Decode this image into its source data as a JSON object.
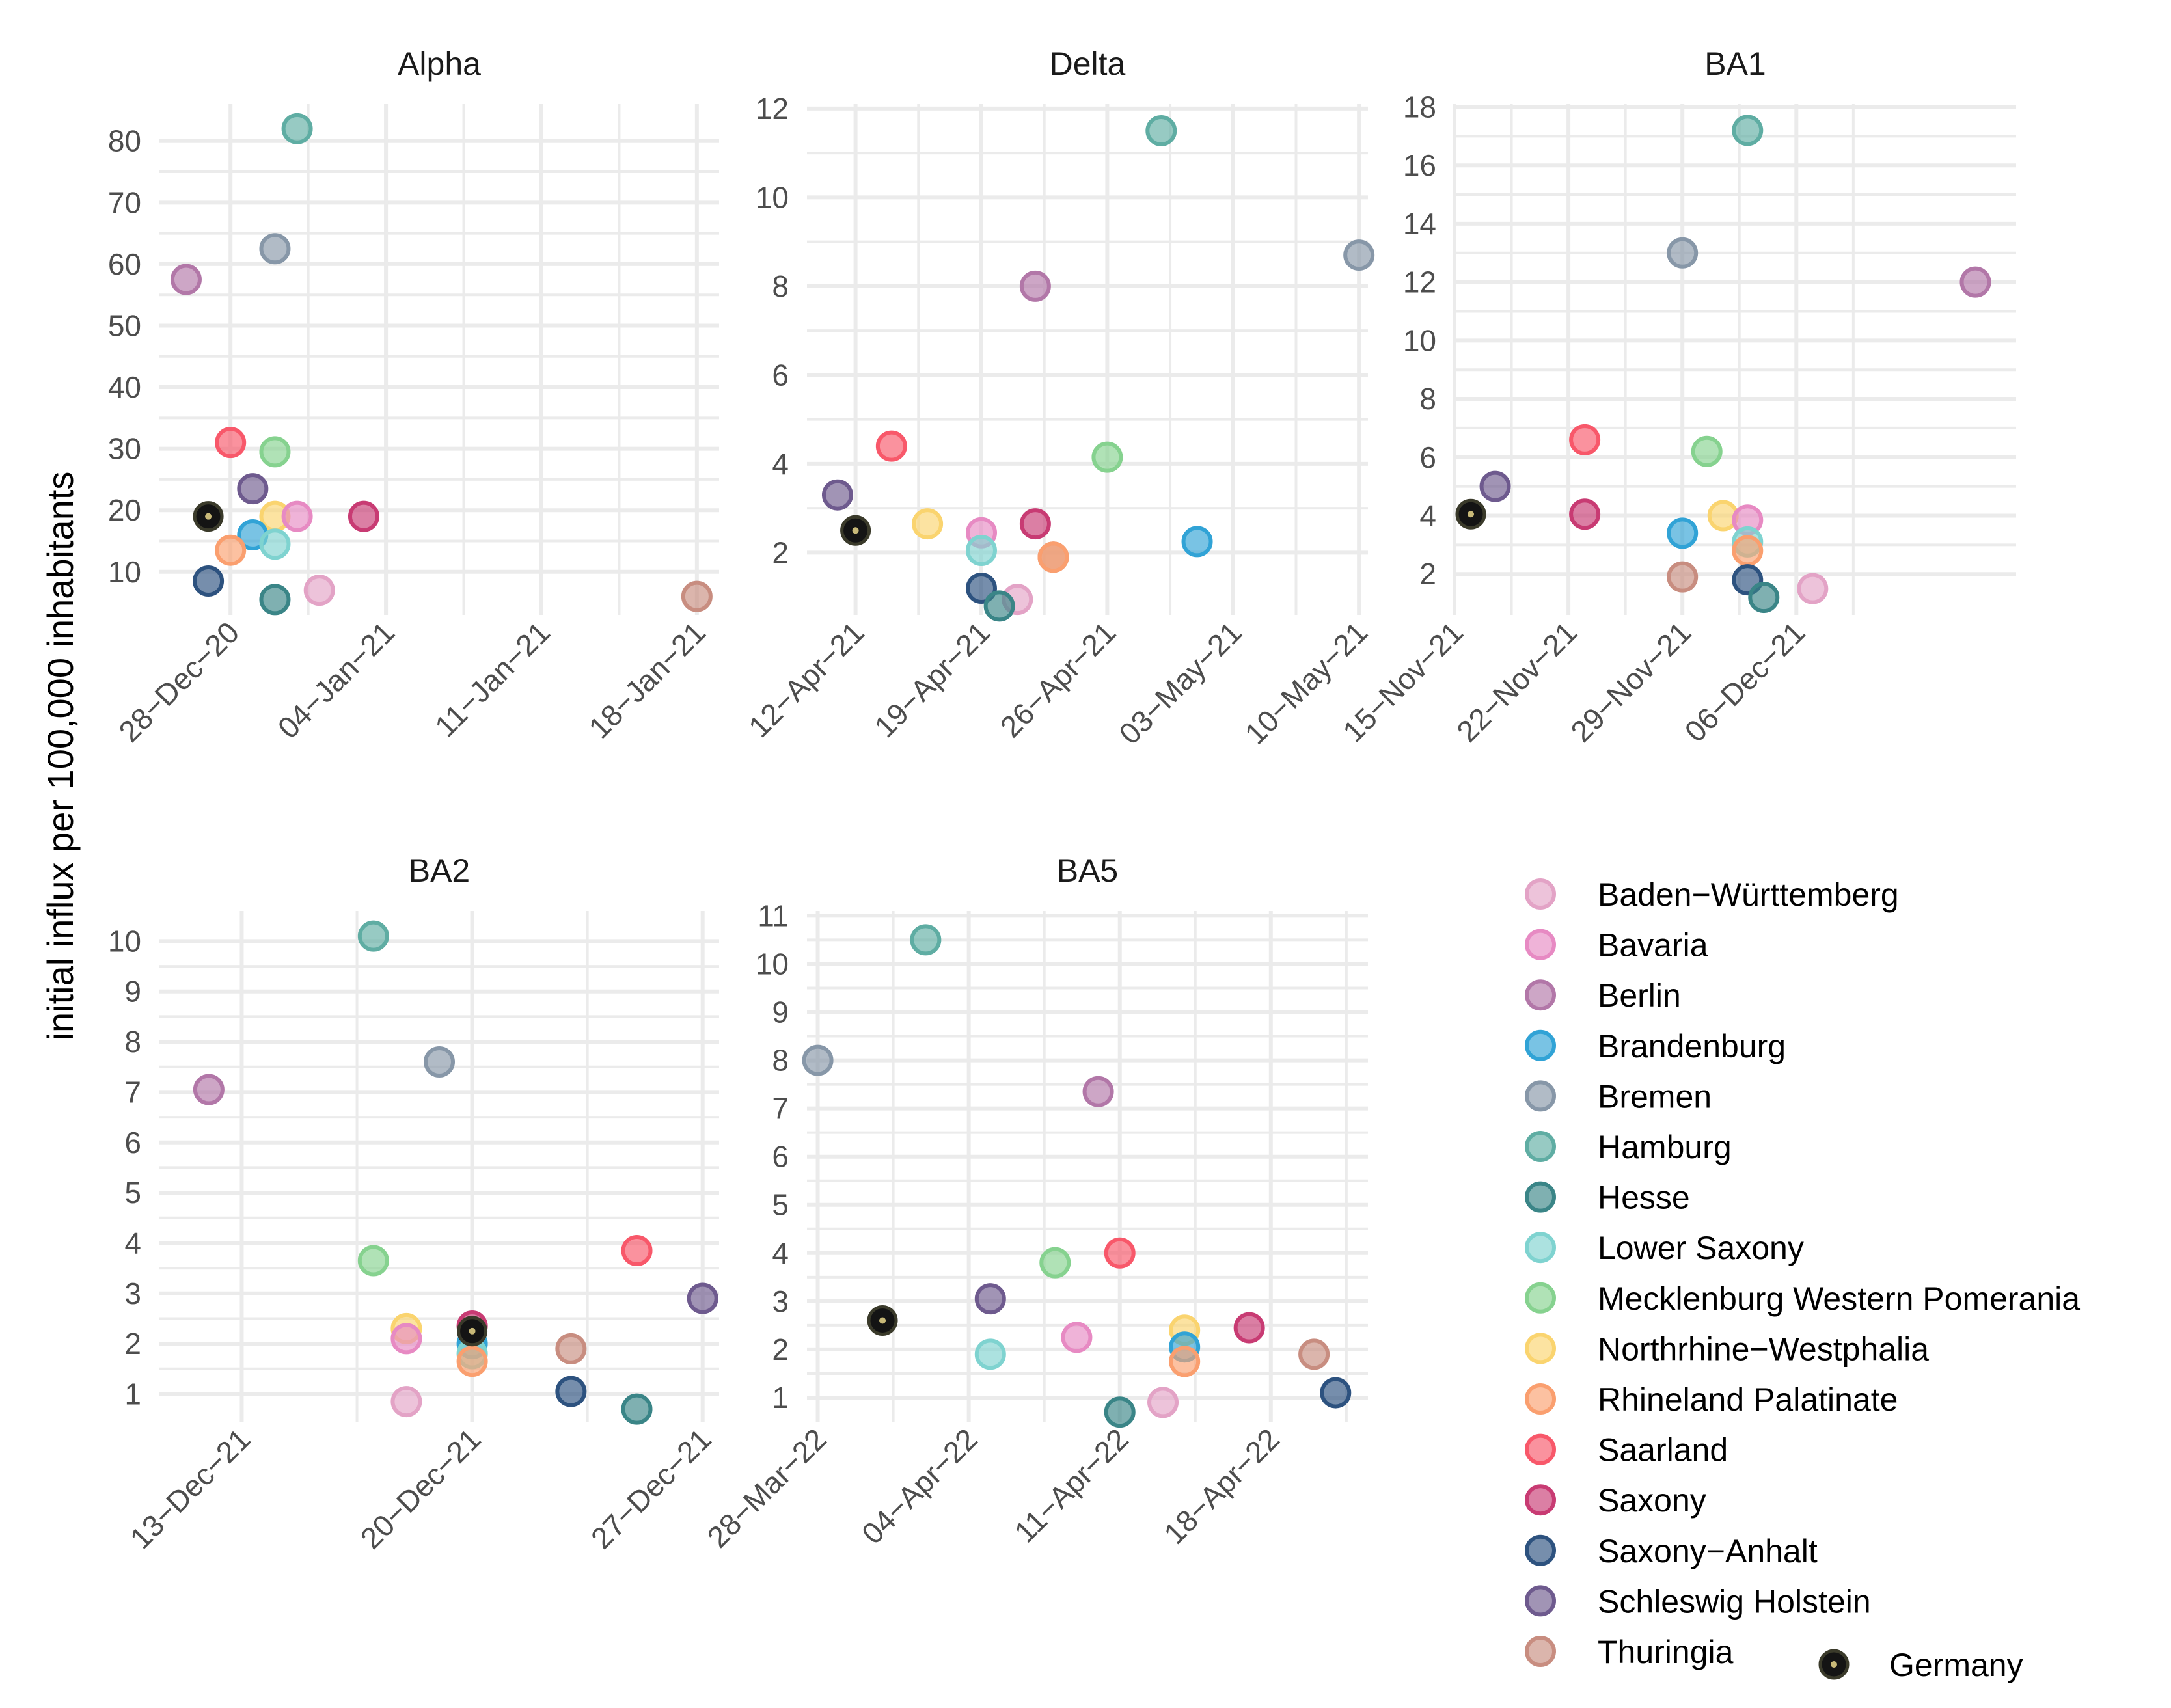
{
  "chart_data": {
    "type": "scatter",
    "ylabel": "initial influx per 100,000 inhabitants",
    "colors": {
      "Baden−Württemberg": "#e3a3c6",
      "Bavaria": "#e78ac3",
      "Berlin": "#b277a8",
      "Brandenburg": "#31a3d6",
      "Bremen": "#8797a8",
      "Hamburg": "#5fada3",
      "Hesse": "#3a8587",
      "Lower Saxony": "#7fd3d0",
      "Mecklenburg Western Pomerania": "#86d28f",
      "Northrhine−Westphalia": "#fad46f",
      "Rhineland Palatinate": "#fa9f6f",
      "Saarland": "#f8586a",
      "Saxony": "#c83b73",
      "Saxony−Anhalt": "#2d527f",
      "Schleswig Holstein": "#6e5a8e",
      "Thuringia": "#c88d80",
      "Germany": "#141414"
    },
    "legend": {
      "entries": [
        "Baden−Württemberg",
        "Bavaria",
        "Berlin",
        "Brandenburg",
        "Bremen",
        "Hamburg",
        "Hesse",
        "Lower Saxony",
        "Mecklenburg Western Pomerania",
        "Northrhine−Westphalia",
        "Rhineland Palatinate",
        "Saarland",
        "Saxony",
        "Saxony−Anhalt",
        "Schleswig Holstein",
        "Thuringia"
      ],
      "germany_label": "Germany",
      "placement": "bottom-right"
    },
    "panels": [
      {
        "title": "Alpha",
        "x_unit": "days since 28−Dec−20",
        "xlim": [
          -3.2,
          22
        ],
        "ylim": [
          3,
          86
        ],
        "x_ticks": [
          0,
          7,
          14,
          21
        ],
        "x_tick_labels": [
          "28−Dec−20",
          "04−Jan−21",
          "11−Jan−21",
          "18−Jan−21"
        ],
        "y_ticks": [
          10,
          20,
          30,
          40,
          50,
          60,
          70,
          80
        ],
        "y_tick_labels": [
          "10",
          "20",
          "30",
          "40",
          "50",
          "60",
          "70",
          "80"
        ],
        "points": [
          {
            "state": "Berlin",
            "x": -2,
            "y": 57.5
          },
          {
            "state": "Hamburg",
            "x": 3,
            "y": 82
          },
          {
            "state": "Bremen",
            "x": 2,
            "y": 62.5
          },
          {
            "state": "Saarland",
            "x": 0,
            "y": 31
          },
          {
            "state": "Mecklenburg Western Pomerania",
            "x": 2,
            "y": 29.5
          },
          {
            "state": "Schleswig Holstein",
            "x": 1,
            "y": 23.5
          },
          {
            "state": "Northrhine−Westphalia",
            "x": 2,
            "y": 19
          },
          {
            "state": "Bavaria",
            "x": 3,
            "y": 19
          },
          {
            "state": "Saxony",
            "x": 6,
            "y": 19
          },
          {
            "state": "Brandenburg",
            "x": 1,
            "y": 16
          },
          {
            "state": "Lower Saxony",
            "x": 2,
            "y": 14.5
          },
          {
            "state": "Rhineland Palatinate",
            "x": 0,
            "y": 13.5
          },
          {
            "state": "Saxony−Anhalt",
            "x": -1,
            "y": 8.5
          },
          {
            "state": "Baden−Württemberg",
            "x": 4,
            "y": 7
          },
          {
            "state": "Hesse",
            "x": 2,
            "y": 5.5
          },
          {
            "state": "Thuringia",
            "x": 21,
            "y": 6
          },
          {
            "state": "Germany",
            "x": -1,
            "y": 19
          }
        ]
      },
      {
        "title": "Delta",
        "x_unit": "days since 12−Apr−21",
        "xlim": [
          -2.7,
          28.5
        ],
        "ylim": [
          0.6,
          12.1
        ],
        "x_ticks": [
          0,
          7,
          14,
          21,
          28
        ],
        "x_tick_labels": [
          "12−Apr−21",
          "19−Apr−21",
          "26−Apr−21",
          "03−May−21",
          "10−May−21"
        ],
        "y_ticks": [
          2,
          4,
          6,
          8,
          10,
          12
        ],
        "y_tick_labels": [
          "2",
          "4",
          "6",
          "8",
          "10",
          "12"
        ],
        "points": [
          {
            "state": "Hamburg",
            "x": 17,
            "y": 11.5
          },
          {
            "state": "Bremen",
            "x": 28,
            "y": 8.7
          },
          {
            "state": "Berlin",
            "x": 10,
            "y": 8
          },
          {
            "state": "Saarland",
            "x": 2,
            "y": 4.4
          },
          {
            "state": "Mecklenburg Western Pomerania",
            "x": 14,
            "y": 4.15
          },
          {
            "state": "Schleswig Holstein",
            "x": -1,
            "y": 3.3
          },
          {
            "state": "Northrhine−Westphalia",
            "x": 4,
            "y": 2.65
          },
          {
            "state": "Saxony",
            "x": 10,
            "y": 2.65
          },
          {
            "state": "Bavaria",
            "x": 7,
            "y": 2.45
          },
          {
            "state": "Brandenburg",
            "x": 19,
            "y": 2.25
          },
          {
            "state": "Lower Saxony",
            "x": 7,
            "y": 2.05
          },
          {
            "state": "Thuringia",
            "x": 11,
            "y": 1.9
          },
          {
            "state": "Rhineland Palatinate",
            "x": 11,
            "y": 1.9
          },
          {
            "state": "Saxony−Anhalt",
            "x": 7,
            "y": 1.2
          },
          {
            "state": "Baden−Württemberg",
            "x": 9,
            "y": 0.95
          },
          {
            "state": "Hesse",
            "x": 8,
            "y": 0.8
          },
          {
            "state": "Germany",
            "x": 0,
            "y": 2.5
          }
        ]
      },
      {
        "title": "BA1",
        "x_unit": "days since 15−Nov−21",
        "xlim": [
          0,
          34.5
        ],
        "ylim": [
          0.6,
          18.1
        ],
        "x_ticks": [
          0,
          7,
          14,
          21
        ],
        "x_tick_labels": [
          "15−Nov−21",
          "22−Nov−21",
          "29−Nov−21",
          "06−Dec−21"
        ],
        "y_ticks": [
          2,
          4,
          6,
          8,
          10,
          12,
          14,
          16,
          18
        ],
        "y_tick_labels": [
          "2",
          "4",
          "6",
          "8",
          "10",
          "12",
          "14",
          "16",
          "18"
        ],
        "points": [
          {
            "state": "Hamburg",
            "x": 18,
            "y": 17.2
          },
          {
            "state": "Bremen",
            "x": 14,
            "y": 13
          },
          {
            "state": "Berlin",
            "x": 32,
            "y": 12
          },
          {
            "state": "Saarland",
            "x": 8,
            "y": 6.6
          },
          {
            "state": "Mecklenburg Western Pomerania",
            "x": 15.5,
            "y": 6.2
          },
          {
            "state": "Schleswig Holstein",
            "x": 2.5,
            "y": 5
          },
          {
            "state": "Saxony",
            "x": 8,
            "y": 4.05
          },
          {
            "state": "Northrhine−Westphalia",
            "x": 16.5,
            "y": 4
          },
          {
            "state": "Bavaria",
            "x": 18,
            "y": 3.85
          },
          {
            "state": "Brandenburg",
            "x": 14,
            "y": 3.4
          },
          {
            "state": "Lower Saxony",
            "x": 18,
            "y": 3.1
          },
          {
            "state": "Rhineland Palatinate",
            "x": 18,
            "y": 2.8
          },
          {
            "state": "Thuringia",
            "x": 14,
            "y": 1.9
          },
          {
            "state": "Saxony−Anhalt",
            "x": 18,
            "y": 1.8
          },
          {
            "state": "Baden−Württemberg",
            "x": 22,
            "y": 1.5
          },
          {
            "state": "Hesse",
            "x": 19,
            "y": 1.2
          },
          {
            "state": "Germany",
            "x": 1,
            "y": 4.05
          }
        ]
      },
      {
        "title": "BA2",
        "x_unit": "days since 13−Dec−21",
        "xlim": [
          -2.5,
          14.5
        ],
        "ylim": [
          0.45,
          10.6
        ],
        "x_ticks": [
          0,
          7,
          14
        ],
        "x_tick_labels": [
          "13−Dec−21",
          "20−Dec−21",
          "27−Dec−21"
        ],
        "y_ticks": [
          1,
          2,
          3,
          4,
          5,
          6,
          7,
          8,
          9,
          10
        ],
        "y_tick_labels": [
          "1",
          "2",
          "3",
          "4",
          "5",
          "6",
          "7",
          "8",
          "9",
          "10"
        ],
        "points": [
          {
            "state": "Hamburg",
            "x": 4,
            "y": 10.1
          },
          {
            "state": "Bremen",
            "x": 6,
            "y": 7.6
          },
          {
            "state": "Berlin",
            "x": -1,
            "y": 7.05
          },
          {
            "state": "Mecklenburg Western Pomerania",
            "x": 4,
            "y": 3.65
          },
          {
            "state": "Saarland",
            "x": 12,
            "y": 3.85
          },
          {
            "state": "Schleswig Holstein",
            "x": 14,
            "y": 2.9
          },
          {
            "state": "Saxony",
            "x": 7,
            "y": 2.35
          },
          {
            "state": "Northrhine−Westphalia",
            "x": 5,
            "y": 2.3
          },
          {
            "state": "Bavaria",
            "x": 5,
            "y": 2.1
          },
          {
            "state": "Brandenburg",
            "x": 7,
            "y": 2
          },
          {
            "state": "Thuringia",
            "x": 10,
            "y": 1.9
          },
          {
            "state": "Lower Saxony",
            "x": 7,
            "y": 1.8
          },
          {
            "state": "Rhineland Palatinate",
            "x": 7,
            "y": 1.65
          },
          {
            "state": "Saxony−Anhalt",
            "x": 10,
            "y": 1.05
          },
          {
            "state": "Baden−Württemberg",
            "x": 5,
            "y": 0.85
          },
          {
            "state": "Hesse",
            "x": 12,
            "y": 0.7
          },
          {
            "state": "Germany",
            "x": 7,
            "y": 2.25
          }
        ]
      },
      {
        "title": "BA5",
        "x_unit": "days since 28−Mar−22",
        "xlim": [
          -0.5,
          25.5
        ],
        "ylim": [
          0.5,
          11.1
        ],
        "x_ticks": [
          0,
          7,
          14,
          21
        ],
        "x_tick_labels": [
          "28−Mar−22",
          "04−Apr−22",
          "11−Apr−22",
          "18−Apr−22"
        ],
        "y_ticks": [
          1,
          2,
          3,
          4,
          5,
          6,
          7,
          8,
          9,
          10,
          11
        ],
        "y_tick_labels": [
          "1",
          "2",
          "3",
          "4",
          "5",
          "6",
          "7",
          "8",
          "9",
          "10",
          "11"
        ],
        "points": [
          {
            "state": "Hamburg",
            "x": 5,
            "y": 10.5
          },
          {
            "state": "Bremen",
            "x": 0,
            "y": 8
          },
          {
            "state": "Berlin",
            "x": 13,
            "y": 7.35
          },
          {
            "state": "Saarland",
            "x": 14,
            "y": 4
          },
          {
            "state": "Mecklenburg Western Pomerania",
            "x": 11,
            "y": 3.8
          },
          {
            "state": "Schleswig Holstein",
            "x": 8,
            "y": 3.05
          },
          {
            "state": "Saxony",
            "x": 20,
            "y": 2.45
          },
          {
            "state": "Northrhine−Westphalia",
            "x": 17,
            "y": 2.4
          },
          {
            "state": "Bavaria",
            "x": 12,
            "y": 2.25
          },
          {
            "state": "Brandenburg",
            "x": 17,
            "y": 2.05
          },
          {
            "state": "Lower Saxony",
            "x": 8,
            "y": 1.9
          },
          {
            "state": "Thuringia",
            "x": 23,
            "y": 1.9
          },
          {
            "state": "Rhineland Palatinate",
            "x": 17,
            "y": 1.75
          },
          {
            "state": "Saxony−Anhalt",
            "x": 24,
            "y": 1.1
          },
          {
            "state": "Baden−Württemberg",
            "x": 16,
            "y": 0.9
          },
          {
            "state": "Hesse",
            "x": 14,
            "y": 0.7
          },
          {
            "state": "Germany",
            "x": 3,
            "y": 2.6
          }
        ]
      }
    ]
  }
}
